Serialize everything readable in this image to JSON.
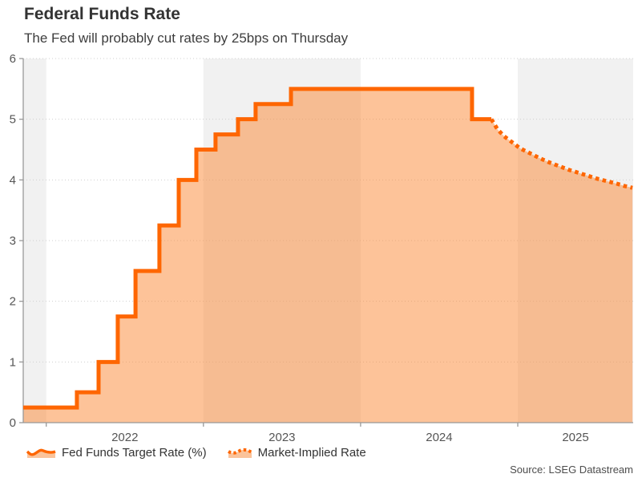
{
  "header": {
    "title": "Federal Funds Rate",
    "subtitle": "The Fed will probably cut rates by 25bps on Thursday"
  },
  "legend": {
    "items": [
      {
        "label": "Fed Funds Target Rate (%)",
        "swatch": "solid-wavy-area"
      },
      {
        "label": "Market-Implied Rate",
        "swatch": "dotted-wavy-area"
      }
    ]
  },
  "source": "Source: LSEG Datastream",
  "colors": {
    "line": "#fe6602",
    "fill": "rgba(251,140,60,0.52)",
    "legend_fill": "#fbc39a",
    "band": "#f1f1f1",
    "grid": "#cfcfcf",
    "axis": "#999999",
    "tick_text": "#555555"
  },
  "chart_data": {
    "type": "area",
    "title": "Federal Funds Rate",
    "subtitle": "The Fed will probably cut rates by 25bps on Thursday",
    "ylabel": "",
    "xlabel": "",
    "ylim": [
      0,
      6
    ],
    "yticks": [
      0,
      1,
      2,
      3,
      4,
      5,
      6
    ],
    "x_range": [
      2021.853,
      2025.73
    ],
    "year_ticks": [
      2022,
      2023,
      2024,
      2025
    ],
    "shaded_years": [
      2021,
      2023,
      2025
    ],
    "grid": "dotted-horizontal",
    "legend_position": "bottom-left",
    "series": [
      {
        "name": "Fed Funds Target Rate (%)",
        "style": "step-solid",
        "steps": [
          [
            2021.853,
            0.25
          ],
          [
            2022.195,
            0.5
          ],
          [
            2022.333,
            1.0
          ],
          [
            2022.455,
            1.75
          ],
          [
            2022.568,
            2.5
          ],
          [
            2022.72,
            3.25
          ],
          [
            2022.843,
            4.0
          ],
          [
            2022.955,
            4.5
          ],
          [
            2023.077,
            4.75
          ],
          [
            2023.22,
            5.0
          ],
          [
            2023.332,
            5.25
          ],
          [
            2023.557,
            5.5
          ],
          [
            2024.709,
            5.0
          ]
        ],
        "end_x": 2024.832
      },
      {
        "name": "Market-Implied Rate",
        "style": "dotted",
        "points": [
          [
            2024.832,
            5.0
          ],
          [
            2024.872,
            4.83
          ],
          [
            2024.913,
            4.72
          ],
          [
            2024.954,
            4.64
          ],
          [
            2025.015,
            4.52
          ],
          [
            2025.077,
            4.44
          ],
          [
            2025.138,
            4.36
          ],
          [
            2025.199,
            4.29
          ],
          [
            2025.26,
            4.23
          ],
          [
            2025.321,
            4.17
          ],
          [
            2025.383,
            4.12
          ],
          [
            2025.444,
            4.07
          ],
          [
            2025.505,
            4.02
          ],
          [
            2025.566,
            3.98
          ],
          [
            2025.628,
            3.94
          ],
          [
            2025.679,
            3.9
          ],
          [
            2025.73,
            3.87
          ]
        ]
      }
    ]
  }
}
